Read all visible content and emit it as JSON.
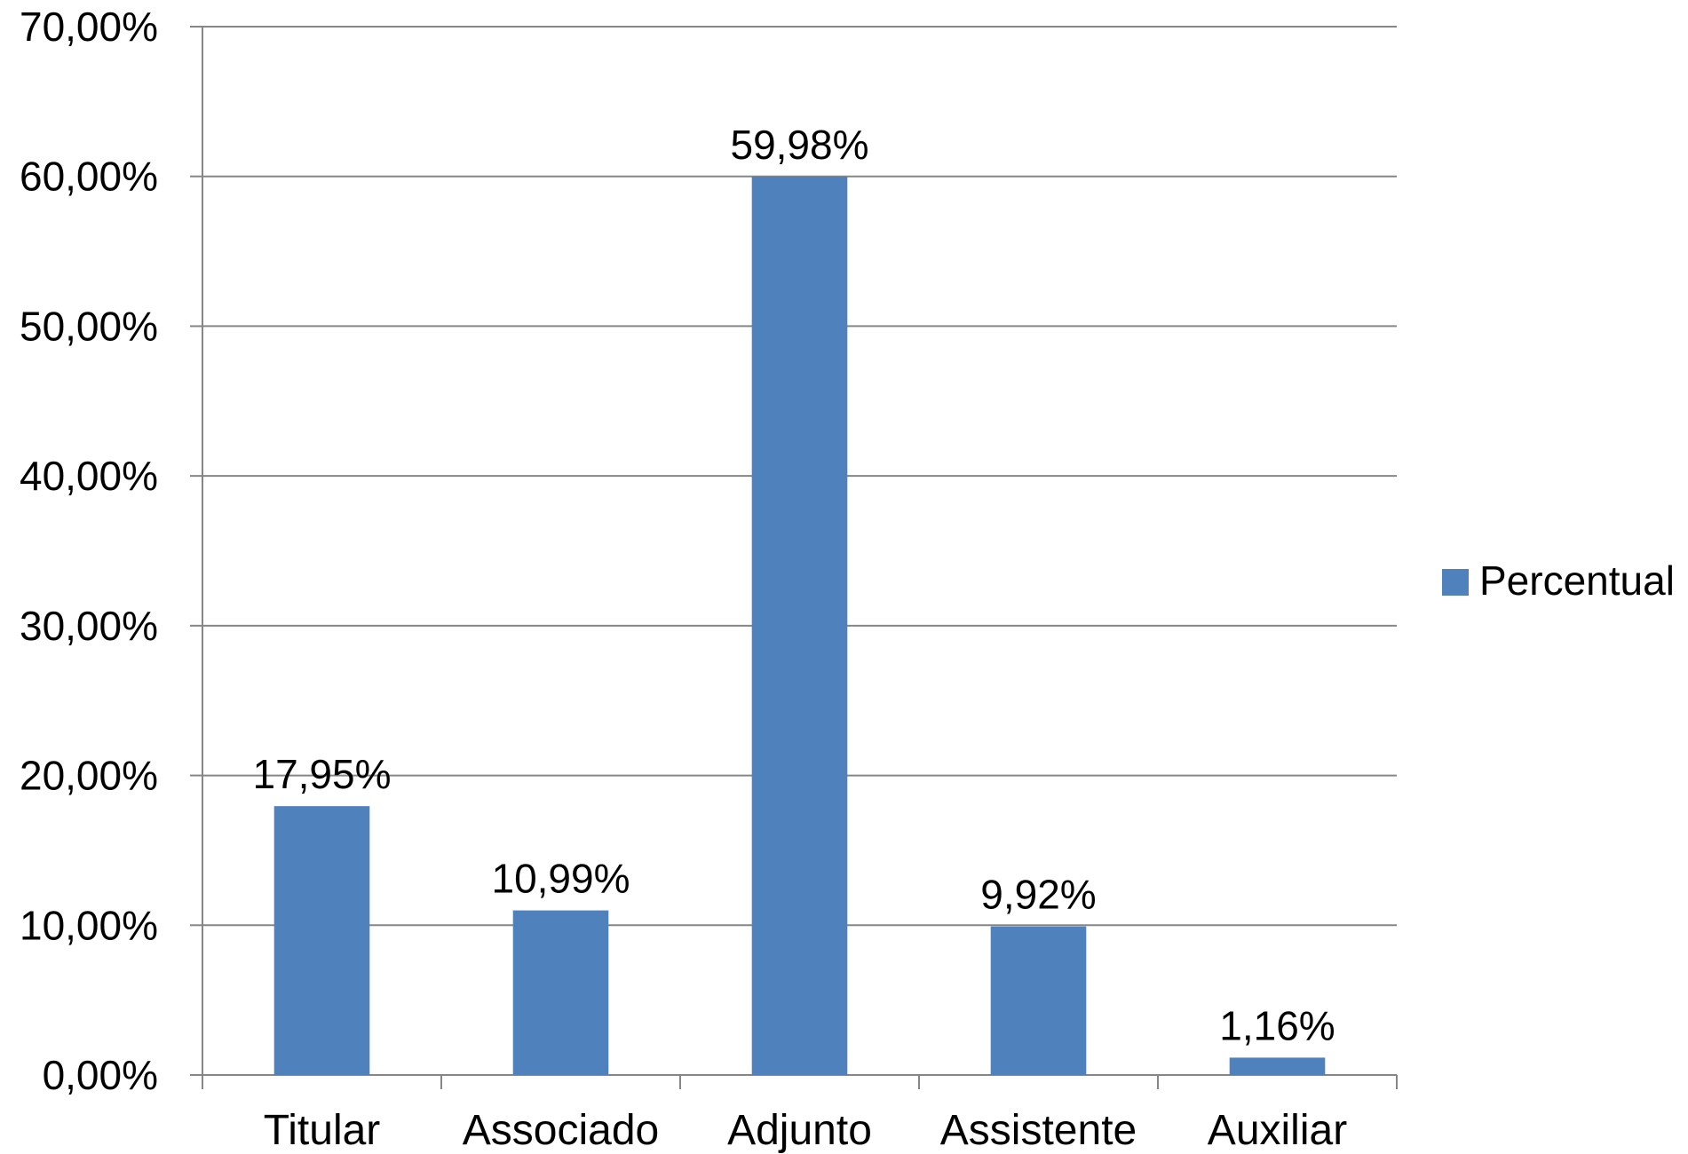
{
  "chart_data": {
    "type": "bar",
    "categories": [
      "Titular",
      "Associado",
      "Adjunto",
      "Assistente",
      "Auxiliar"
    ],
    "series": [
      {
        "name": "Percentual",
        "values": [
          17.95,
          10.99,
          59.98,
          9.92,
          1.16
        ],
        "data_labels": [
          "17,95%",
          "10,99%",
          "59,98%",
          "9,92%",
          "1,16%"
        ],
        "color": "#4f81bd"
      }
    ],
    "ylim": [
      0,
      70
    ],
    "y_ticks": [
      0,
      10,
      20,
      30,
      40,
      50,
      60,
      70
    ],
    "y_tick_labels": [
      "0,00%",
      "10,00%",
      "20,00%",
      "30,00%",
      "40,00%",
      "50,00%",
      "60,00%",
      "70,00%"
    ],
    "title": "",
    "xlabel": "",
    "ylabel": "",
    "grid": true,
    "legend_position": "right",
    "gridline_color": "#868686"
  }
}
